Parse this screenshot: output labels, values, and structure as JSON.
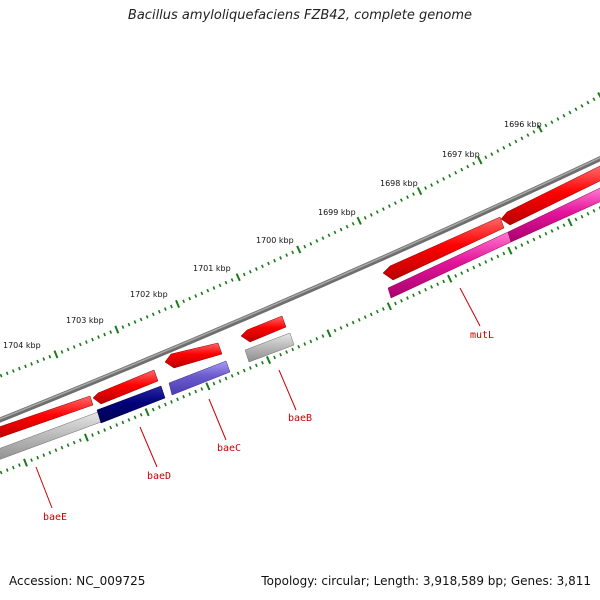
{
  "title": "Bacillus amyloliquefaciens FZB42, complete genome",
  "footer": {
    "accession": "Accession: NC_009725",
    "topology": "Topology: circular; Length: 3,918,589 bp; Genes: 3,811"
  },
  "colors": {
    "backbone": "#7a7a7a",
    "ticks": "#1a7a1a",
    "cds_red": "#ff0000",
    "gene_grey": "#b8b8b8",
    "baeD": "#00007a",
    "baeC": "#6a5acd",
    "mutL": "#e4149a",
    "label": "#cc0000"
  },
  "scale_labels": [
    "1696 kbp",
    "1697 kbp",
    "1698 kbp",
    "1699 kbp",
    "1700 kbp",
    "1701 kbp",
    "1702 kbp",
    "1703 kbp",
    "1704 kbp"
  ],
  "genes": [
    {
      "name": "baeE"
    },
    {
      "name": "baeD"
    },
    {
      "name": "baeC"
    },
    {
      "name": "baeB"
    },
    {
      "name": "mutL"
    }
  ]
}
